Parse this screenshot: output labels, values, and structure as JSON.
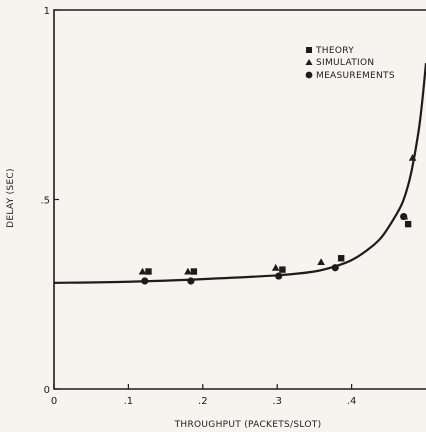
{
  "chart_data": {
    "type": "scatter",
    "title": "",
    "xlabel": "THROUGHPUT (PACKETS/SLOT)",
    "ylabel": "DELAY (SEC)",
    "xlim": [
      0,
      0.5
    ],
    "ylim": [
      0,
      1
    ],
    "x_ticks": [
      {
        "value": 0,
        "label": "0"
      },
      {
        "value": 0.1,
        "label": ".1"
      },
      {
        "value": 0.2,
        "label": ".2"
      },
      {
        "value": 0.3,
        "label": ".3"
      },
      {
        "value": 0.4,
        "label": ".4"
      }
    ],
    "y_ticks": [
      {
        "value": 0,
        "label": "0"
      },
      {
        "value": 0.5,
        "label": ".5"
      },
      {
        "value": 1,
        "label": "1"
      }
    ],
    "grid": false,
    "legend_position": "top-right",
    "series": [
      {
        "name": "THEORY",
        "marker": "square",
        "points": [
          [
            0.127,
            0.31
          ],
          [
            0.188,
            0.31
          ],
          [
            0.307,
            0.315
          ],
          [
            0.386,
            0.345
          ],
          [
            0.476,
            0.435
          ]
        ]
      },
      {
        "name": "SIMULATION",
        "marker": "triangle",
        "points": [
          [
            0.119,
            0.31
          ],
          [
            0.18,
            0.31
          ],
          [
            0.298,
            0.32
          ],
          [
            0.359,
            0.335
          ],
          [
            0.471,
            0.455
          ],
          [
            0.482,
            0.61
          ]
        ]
      },
      {
        "name": "MEASUREMENTS",
        "marker": "circle",
        "points": [
          [
            0.122,
            0.285
          ],
          [
            0.184,
            0.285
          ],
          [
            0.302,
            0.298
          ],
          [
            0.378,
            0.32
          ],
          [
            0.47,
            0.455
          ]
        ]
      }
    ],
    "curve": {
      "description_free": true,
      "points": [
        [
          0,
          0.28
        ],
        [
          0.1,
          0.283
        ],
        [
          0.2,
          0.29
        ],
        [
          0.3,
          0.3
        ],
        [
          0.35,
          0.31
        ],
        [
          0.38,
          0.325
        ],
        [
          0.4,
          0.34
        ],
        [
          0.42,
          0.365
        ],
        [
          0.44,
          0.4
        ],
        [
          0.46,
          0.46
        ],
        [
          0.47,
          0.5
        ],
        [
          0.48,
          0.57
        ],
        [
          0.49,
          0.68
        ],
        [
          0.495,
          0.76
        ],
        [
          0.5,
          0.86
        ]
      ]
    }
  },
  "style": {
    "ink": "#1c1c1c",
    "background": "#f6f4ef"
  }
}
